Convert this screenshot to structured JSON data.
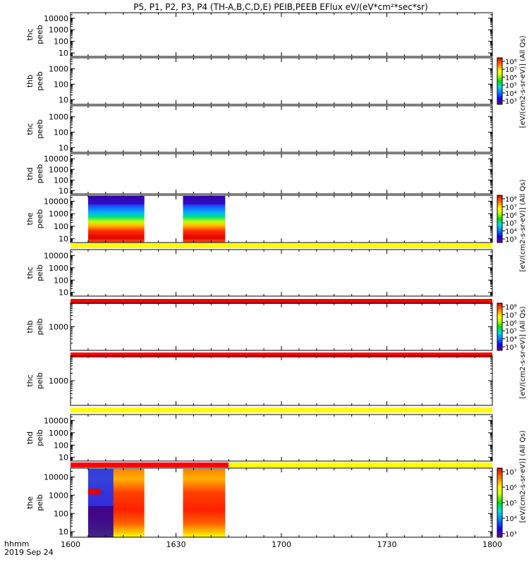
{
  "title": "P5, P1, P2, P3, P4 (TH-A,B,C,D,E) PEIB,PEEB EFlux eV/(eV*cm²*sec*sr)",
  "chart_data": {
    "type": "heatmap",
    "x_ticks": [
      "1600",
      "1630",
      "1700",
      "1730",
      "1800"
    ],
    "xlim": [
      "16:00",
      "18:00"
    ],
    "time_label_line1": "hhmm",
    "time_label_line2": "2019 Sep 24",
    "panels": [
      {
        "probe": "thc",
        "quantity": "peeb",
        "y_ticks": [
          "10000",
          "1000",
          "100",
          "10"
        ],
        "ylim": [
          5,
          30000
        ],
        "scale": "log",
        "data_blocks": []
      },
      {
        "probe": "thb",
        "quantity": "peeb",
        "y_ticks": [
          "1000",
          "100",
          "10"
        ],
        "ylim": [
          5,
          5000
        ],
        "scale": "log",
        "data_blocks": []
      },
      {
        "probe": "thc",
        "quantity": "peeb",
        "y_ticks": [
          "1000",
          "100",
          "10"
        ],
        "ylim": [
          5,
          5000
        ],
        "scale": "log",
        "data_blocks": []
      },
      {
        "probe": "thd",
        "quantity": "peeb",
        "y_ticks": [
          "10000",
          "1000",
          "100",
          "10"
        ],
        "ylim": [
          5,
          30000
        ],
        "scale": "log",
        "data_blocks": []
      },
      {
        "probe": "the",
        "quantity": "peeb",
        "y_ticks": [
          "10000",
          "1000",
          "100",
          "10"
        ],
        "ylim": [
          5,
          30000
        ],
        "scale": "log",
        "data_blocks": [
          {
            "start": "16:05",
            "end": "16:21",
            "style": "electron"
          },
          {
            "start": "16:32",
            "end": "16:44",
            "style": "electron"
          }
        ],
        "status_bar": {
          "color": "#ffff00"
        }
      },
      {
        "probe": "thc",
        "quantity": "peib",
        "y_ticks": [
          "10000",
          "1000",
          "100",
          "10"
        ],
        "ylim": [
          5,
          30000
        ],
        "scale": "log",
        "data_blocks": [],
        "status_bar": {
          "color": "#ff0000"
        }
      },
      {
        "probe": "thb",
        "quantity": "peib",
        "y_ticks": [
          "1000"
        ],
        "ylim": [
          100,
          10000
        ],
        "scale": "log",
        "data_blocks": [],
        "status_bar": {
          "color": "#ff0000"
        }
      },
      {
        "probe": "thc",
        "quantity": "peib",
        "y_ticks": [
          "1000"
        ],
        "ylim": [
          100,
          10000
        ],
        "scale": "log",
        "data_blocks": [],
        "status_bar": {
          "color": "#ffff00"
        }
      },
      {
        "probe": "thd",
        "quantity": "peib",
        "y_ticks": [
          "10000",
          "1000",
          "100",
          "10"
        ],
        "ylim": [
          5,
          30000
        ],
        "scale": "log",
        "data_blocks": [],
        "status_bar": {
          "segments": [
            {
              "start": "16:00",
              "end": "16:45",
              "color": "#ff0000"
            },
            {
              "start": "16:45",
              "end": "18:00",
              "color": "#ffff00"
            }
          ]
        }
      },
      {
        "probe": "the",
        "quantity": "peib",
        "y_ticks": [
          "10000",
          "1000",
          "100",
          "10"
        ],
        "ylim": [
          5,
          30000
        ],
        "scale": "log",
        "data_blocks": [
          {
            "start": "16:05",
            "end": "16:21",
            "style": "ion"
          },
          {
            "start": "16:32",
            "end": "16:44",
            "style": "ion"
          }
        ]
      }
    ],
    "colorbars": [
      {
        "ticks": [
          "10⁸",
          "10⁷",
          "10⁶",
          "10⁵",
          "10⁴",
          "10³"
        ],
        "label": "[eV/(cm2-s-sr-eV)] (All Qs)"
      },
      {
        "ticks": [
          "10⁸",
          "10⁷",
          "10⁶",
          "10⁵",
          "10⁴",
          "10³"
        ],
        "label": "[eV/(cm2-s-sr-eV)] (All Qs)"
      },
      {
        "ticks": [
          "10⁸",
          "10⁷",
          "10⁶",
          "10⁵",
          "10⁴",
          "10³"
        ],
        "label": "[eV/(cm2-s-sr-eV)] (All Qs)"
      },
      {
        "ticks": [
          "10⁷",
          "10⁶",
          "10⁵",
          "10⁴",
          "10³"
        ],
        "label": "[eV/(cm2-s-sr-eV)] (All Qs)"
      }
    ],
    "colors": {
      "scale": [
        "#7a007a",
        "#2000d0",
        "#0000ff",
        "#0080ff",
        "#00d0ff",
        "#00e0a0",
        "#40e000",
        "#c0ff00",
        "#ffff00",
        "#ffc000",
        "#ff8000",
        "#ff3000",
        "#e00000"
      ]
    }
  }
}
